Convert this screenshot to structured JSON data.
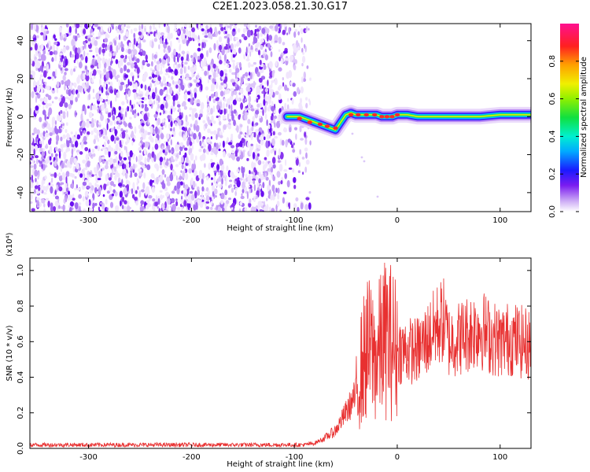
{
  "figure": {
    "title": "C2E1.2023.058.21.30.G17"
  },
  "chart_data": [
    {
      "type": "heatmap",
      "title": "C2E1.2023.058.21.30.G17",
      "xlabel": "Height of straight line (km)",
      "ylabel": "Frequency (Hz)",
      "xlim": [
        -357,
        130
      ],
      "ylim": [
        -50,
        49
      ],
      "xticks": [
        -300,
        -200,
        -100,
        0,
        100
      ],
      "xtick_labels": [
        "-300",
        "-200",
        "-100",
        "0",
        "100"
      ],
      "yticks": [
        -40,
        -20,
        0,
        20,
        40
      ],
      "ytick_labels": [
        "-40",
        "-20",
        "0",
        "20",
        "40"
      ],
      "noise_region_x": [
        -357,
        -90
      ],
      "signal_trace": {
        "x": [
          -107,
          -100,
          -95,
          -90,
          -85,
          -80,
          -75,
          -70,
          -65,
          -60,
          -55,
          -50,
          -45,
          -40,
          -35,
          -30,
          -25,
          -20,
          -15,
          -10,
          -5,
          0,
          10,
          20,
          40,
          60,
          80,
          100,
          130
        ],
        "y": [
          0,
          0,
          0,
          -1,
          -2,
          -3,
          -4,
          -5,
          -6,
          -7,
          -3,
          1,
          2,
          1,
          1,
          1,
          1,
          1,
          0,
          0,
          0,
          1,
          1,
          0,
          0,
          0,
          0,
          1,
          1
        ]
      },
      "colorbar": {
        "label": "Normalized spectral amplitude",
        "range": [
          0,
          1
        ],
        "ticks": [
          0.0,
          0.2,
          0.4,
          0.6,
          0.8
        ],
        "tick_labels": [
          "0.0",
          "0.2",
          "0.4",
          "0.6",
          "0.8"
        ]
      },
      "grid": false
    },
    {
      "type": "line",
      "xlabel": "Height of straight line (km)",
      "ylabel": "SNR (10 * v/v)",
      "yscale_label": "(x10⁴)",
      "xlim": [
        -357,
        130
      ],
      "ylim": [
        0,
        1.07
      ],
      "xticks": [
        -300,
        -200,
        -100,
        0,
        100
      ],
      "xtick_labels": [
        "-300",
        "-200",
        "-100",
        "0",
        "100"
      ],
      "yticks": [
        0.0,
        0.2,
        0.4,
        0.6,
        0.8,
        1.0
      ],
      "ytick_labels": [
        "0.0",
        "0.2",
        "0.4",
        "0.6",
        "0.8",
        "1.0"
      ],
      "color": "#e83030",
      "series": [
        {
          "x": [
            -357,
            -300,
            -250,
            -200,
            -150,
            -120,
            -100,
            -90,
            -80,
            -70,
            -60,
            -50,
            -45,
            -40,
            -35,
            -30,
            -25,
            -20,
            -15,
            -10,
            -5,
            0,
            10,
            20,
            30,
            40,
            45,
            50,
            60,
            70,
            80,
            90,
            100,
            110,
            120,
            130
          ],
          "y": [
            0.02,
            0.02,
            0.02,
            0.02,
            0.02,
            0.02,
            0.02,
            0.02,
            0.03,
            0.06,
            0.1,
            0.2,
            0.25,
            0.3,
            0.45,
            0.55,
            0.55,
            0.5,
            0.6,
            0.62,
            0.6,
            0.55,
            0.55,
            0.55,
            0.62,
            0.7,
            0.72,
            0.6,
            0.62,
            0.65,
            0.68,
            0.63,
            0.6,
            0.62,
            0.6,
            0.58
          ]
        }
      ],
      "grid": false
    }
  ]
}
